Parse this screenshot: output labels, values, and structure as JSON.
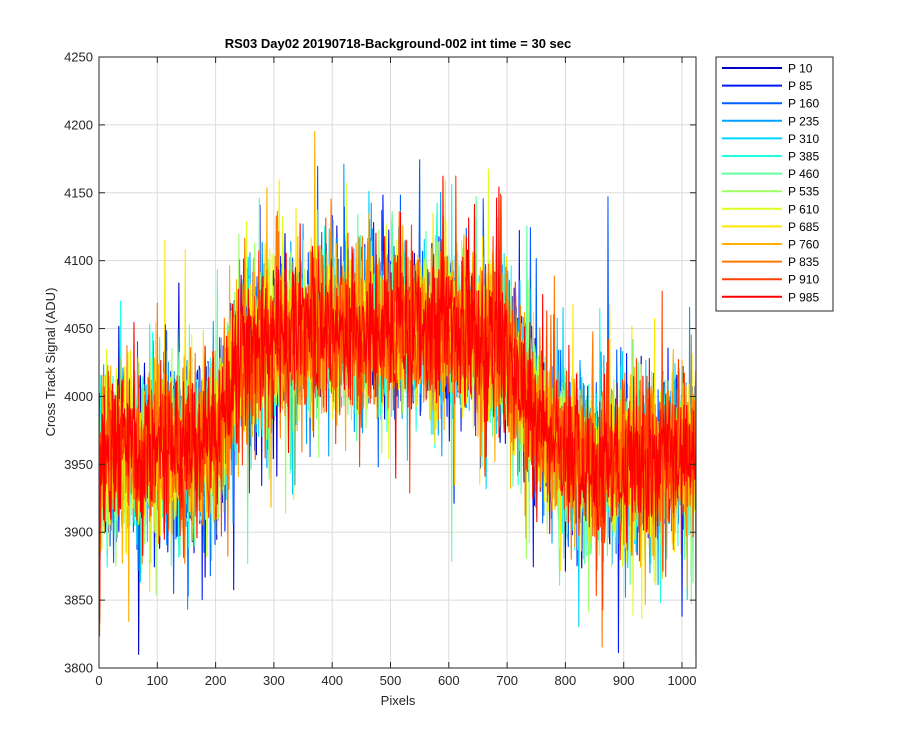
{
  "chart_data": {
    "type": "line",
    "title": "RS03 Day02 20190718-Background-002 int time = 30 sec",
    "xlabel": "Pixels",
    "ylabel": "Cross Track Signal (ADU)",
    "xlim": [
      0,
      1024
    ],
    "ylim": [
      3800,
      4250
    ],
    "xticks": [
      0,
      100,
      200,
      300,
      400,
      500,
      600,
      700,
      800,
      900,
      1000
    ],
    "yticks": [
      3800,
      3850,
      3900,
      3950,
      4000,
      4050,
      4100,
      4150,
      4200,
      4250
    ],
    "grid": true,
    "legend_position": "outside-right",
    "profile_nodes": {
      "x": [
        0,
        100,
        200,
        250,
        300,
        400,
        500,
        600,
        650,
        700,
        750,
        800,
        900,
        1024
      ],
      "y": [
        3950,
        3962,
        3968,
        4035,
        4040,
        4050,
        4048,
        4050,
        4045,
        4030,
        3985,
        3955,
        3945,
        3958
      ]
    },
    "noise_amplitude_adu": 45,
    "series": [
      {
        "name": "P 10",
        "color": "#0000c8"
      },
      {
        "name": "P 85",
        "color": "#0018ff"
      },
      {
        "name": "P 160",
        "color": "#0060ff"
      },
      {
        "name": "P 235",
        "color": "#00a0ff"
      },
      {
        "name": "P 310",
        "color": "#00d4ff"
      },
      {
        "name": "P 385",
        "color": "#20ffdf"
      },
      {
        "name": "P 460",
        "color": "#60ffa0"
      },
      {
        "name": "P 535",
        "color": "#9fff60"
      },
      {
        "name": "P 610",
        "color": "#dfff20"
      },
      {
        "name": "P 685",
        "color": "#ffe600"
      },
      {
        "name": "P 760",
        "color": "#ffb000"
      },
      {
        "name": "P 835",
        "color": "#ff7800"
      },
      {
        "name": "P 910",
        "color": "#ff4000"
      },
      {
        "name": "P 985",
        "color": "#ff0000"
      }
    ]
  }
}
